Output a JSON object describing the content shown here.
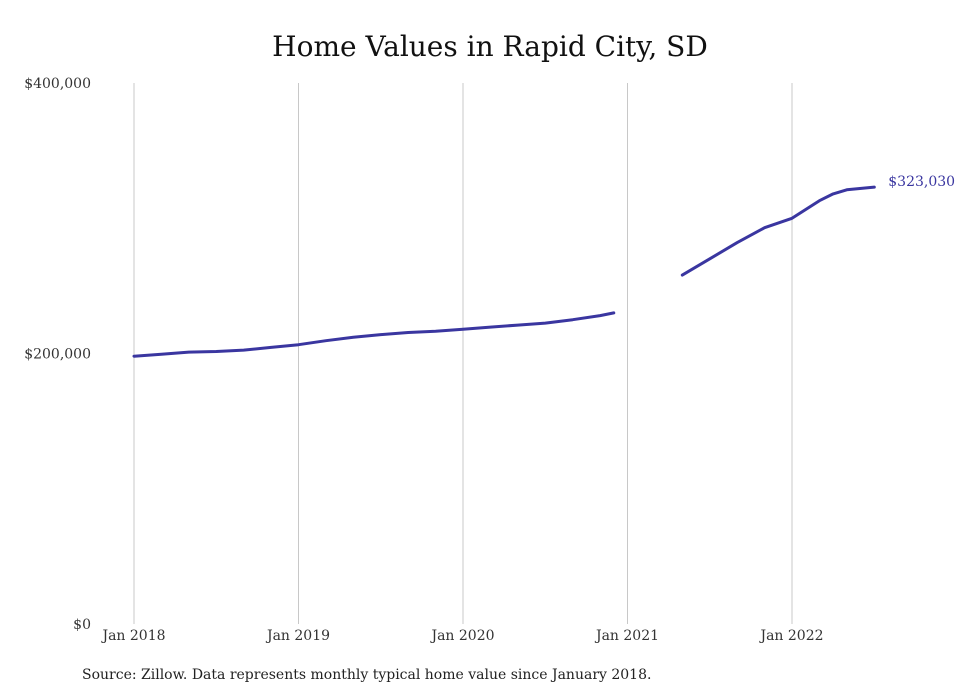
{
  "chart_data": {
    "type": "line",
    "title": "Home Values in Rapid City, SD",
    "xlabel": "",
    "ylabel": "",
    "x_ticks": [
      "Jan 2018",
      "Jan 2019",
      "Jan 2020",
      "Jan 2021",
      "Jan 2022"
    ],
    "y_ticks": [
      "$0",
      "$200,000",
      "$400,000"
    ],
    "ylim": [
      0,
      400000
    ],
    "xlim": [
      "2018-01",
      "2022-07"
    ],
    "grid": "vertical",
    "line_color": "#3a36a0",
    "segments": [
      {
        "x": [
          "2018-01",
          "2018-03",
          "2018-05",
          "2018-07",
          "2018-09",
          "2018-11",
          "2019-01",
          "2019-03",
          "2019-05",
          "2019-07",
          "2019-09",
          "2019-11",
          "2020-01",
          "2020-03",
          "2020-05",
          "2020-07",
          "2020-09",
          "2020-11",
          "2020-12"
        ],
        "y": [
          198000,
          199500,
          201000,
          201500,
          202500,
          204500,
          206500,
          209500,
          212000,
          214000,
          215500,
          216500,
          218000,
          219500,
          221000,
          222500,
          225000,
          228000,
          230000
        ]
      },
      {
        "x": [
          "2021-05",
          "2021-07",
          "2021-09",
          "2021-11",
          "2022-01",
          "2022-03",
          "2022-04",
          "2022-05",
          "2022-07"
        ],
        "y": [
          258000,
          270000,
          282000,
          293000,
          300000,
          313000,
          318000,
          321000,
          323030
        ]
      }
    ],
    "end_label": "$323,030"
  },
  "source_note": "Source: Zillow. Data represents monthly typical home value since January 2018."
}
